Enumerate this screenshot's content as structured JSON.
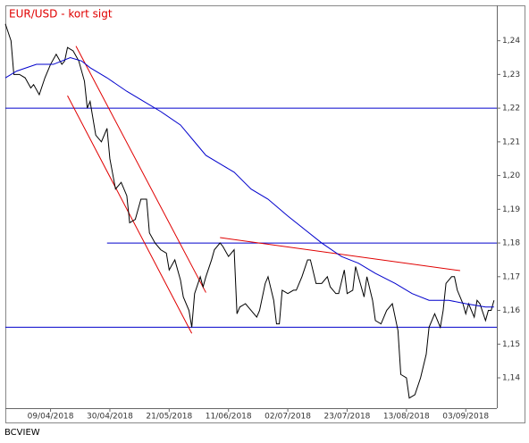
{
  "chart_data": {
    "type": "line",
    "title": "EUR/USD - kort sigt",
    "source": "BCVIEW",
    "xlim": [
      "2018-03-24",
      "2018-09-14"
    ],
    "ylim": [
      1.131,
      1.2505
    ],
    "yticks": [
      {
        "value": 1.14,
        "label": "1,14"
      },
      {
        "value": 1.15,
        "label": "1,15"
      },
      {
        "value": 1.16,
        "label": "1,16"
      },
      {
        "value": 1.17,
        "label": "1,17"
      },
      {
        "value": 1.18,
        "label": "1,18"
      },
      {
        "value": 1.19,
        "label": "1,19"
      },
      {
        "value": 1.2,
        "label": "1,20"
      },
      {
        "value": 1.21,
        "label": "1,21"
      },
      {
        "value": 1.22,
        "label": "1,22"
      },
      {
        "value": 1.23,
        "label": "1,23"
      },
      {
        "value": 1.24,
        "label": "1,24"
      }
    ],
    "xticks": [
      {
        "value": "2018-04-09",
        "label": "09/04/2018"
      },
      {
        "value": "2018-04-30",
        "label": "30/04/2018"
      },
      {
        "value": "2018-05-21",
        "label": "21/05/2018"
      },
      {
        "value": "2018-06-11",
        "label": "11/06/2018"
      },
      {
        "value": "2018-07-02",
        "label": "02/07/2018"
      },
      {
        "value": "2018-07-23",
        "label": "23/07/2018"
      },
      {
        "value": "2018-08-13",
        "label": "13/08/2018"
      },
      {
        "value": "2018-09-03",
        "label": "03/09/2018"
      }
    ],
    "series": [
      {
        "color": "#000000",
        "x": [
          "2018-03-24",
          "2018-03-26",
          "2018-03-27",
          "2018-03-29",
          "2018-03-31",
          "2018-04-02",
          "2018-04-03",
          "2018-04-05",
          "2018-04-07",
          "2018-04-09",
          "2018-04-11",
          "2018-04-13",
          "2018-04-14",
          "2018-04-15",
          "2018-04-17",
          "2018-04-19",
          "2018-04-21",
          "2018-04-22",
          "2018-04-23",
          "2018-04-25",
          "2018-04-27",
          "2018-04-29",
          "2018-04-30",
          "2018-05-02",
          "2018-05-04",
          "2018-05-06",
          "2018-05-07",
          "2018-05-09",
          "2018-05-11",
          "2018-05-13",
          "2018-05-14",
          "2018-05-16",
          "2018-05-18",
          "2018-05-20",
          "2018-05-21",
          "2018-05-23",
          "2018-05-25",
          "2018-05-26",
          "2018-05-28",
          "2018-05-29",
          "2018-05-30",
          "2018-06-01",
          "2018-06-02",
          "2018-06-03",
          "2018-06-05",
          "2018-06-06",
          "2018-06-08",
          "2018-06-09",
          "2018-06-11",
          "2018-06-13",
          "2018-06-14",
          "2018-06-15",
          "2018-06-17",
          "2018-06-19",
          "2018-06-21",
          "2018-06-22",
          "2018-06-24",
          "2018-06-25",
          "2018-06-27",
          "2018-06-28",
          "2018-06-29",
          "2018-06-30",
          "2018-07-02",
          "2018-07-04",
          "2018-07-05",
          "2018-07-07",
          "2018-07-09",
          "2018-07-10",
          "2018-07-12",
          "2018-07-14",
          "2018-07-16",
          "2018-07-17",
          "2018-07-19",
          "2018-07-20",
          "2018-07-22",
          "2018-07-23",
          "2018-07-25",
          "2018-07-26",
          "2018-07-28",
          "2018-07-29",
          "2018-07-30",
          "2018-08-01",
          "2018-08-02",
          "2018-08-04",
          "2018-08-06",
          "2018-08-08",
          "2018-08-10",
          "2018-08-11",
          "2018-08-13",
          "2018-08-14",
          "2018-08-16",
          "2018-08-18",
          "2018-08-20",
          "2018-08-21",
          "2018-08-23",
          "2018-08-25",
          "2018-08-26",
          "2018-08-27",
          "2018-08-29",
          "2018-08-30",
          "2018-08-31",
          "2018-09-02",
          "2018-09-03",
          "2018-09-04",
          "2018-09-06",
          "2018-09-07",
          "2018-09-08",
          "2018-09-10",
          "2018-09-11",
          "2018-09-12",
          "2018-09-13"
        ],
        "values": [
          1.245,
          1.24,
          1.23,
          1.23,
          1.229,
          1.226,
          1.227,
          1.224,
          1.229,
          1.233,
          1.236,
          1.233,
          1.234,
          1.238,
          1.237,
          1.234,
          1.228,
          1.22,
          1.222,
          1.212,
          1.21,
          1.214,
          1.205,
          1.196,
          1.198,
          1.194,
          1.186,
          1.187,
          1.193,
          1.193,
          1.183,
          1.18,
          1.178,
          1.177,
          1.172,
          1.175,
          1.169,
          1.164,
          1.16,
          1.155,
          1.165,
          1.17,
          1.167,
          1.17,
          1.175,
          1.178,
          1.18,
          1.179,
          1.176,
          1.178,
          1.159,
          1.161,
          1.162,
          1.16,
          1.158,
          1.16,
          1.168,
          1.17,
          1.163,
          1.156,
          1.156,
          1.166,
          1.165,
          1.166,
          1.166,
          1.17,
          1.175,
          1.175,
          1.168,
          1.168,
          1.17,
          1.167,
          1.165,
          1.165,
          1.172,
          1.165,
          1.166,
          1.173,
          1.167,
          1.164,
          1.17,
          1.163,
          1.157,
          1.156,
          1.16,
          1.162,
          1.154,
          1.141,
          1.14,
          1.134,
          1.135,
          1.14,
          1.147,
          1.155,
          1.159,
          1.155,
          1.16,
          1.168,
          1.17,
          1.17,
          1.166,
          1.162,
          1.159,
          1.162,
          1.158,
          1.163,
          1.162,
          1.157,
          1.16,
          1.16,
          1.163
        ]
      },
      {
        "color": "#0000cc",
        "x": [
          "2018-03-24",
          "2018-03-28",
          "2018-04-04",
          "2018-04-10",
          "2018-04-16",
          "2018-04-20",
          "2018-04-23",
          "2018-04-29",
          "2018-05-06",
          "2018-05-12",
          "2018-05-18",
          "2018-05-25",
          "2018-05-31",
          "2018-06-03",
          "2018-06-09",
          "2018-06-13",
          "2018-06-19",
          "2018-06-25",
          "2018-07-02",
          "2018-07-08",
          "2018-07-14",
          "2018-07-21",
          "2018-07-27",
          "2018-08-02",
          "2018-08-09",
          "2018-08-15",
          "2018-08-21",
          "2018-08-28",
          "2018-09-03",
          "2018-09-10",
          "2018-09-13"
        ],
        "values": [
          1.229,
          1.231,
          1.233,
          1.233,
          1.235,
          1.234,
          1.232,
          1.229,
          1.225,
          1.222,
          1.219,
          1.215,
          1.209,
          1.206,
          1.203,
          1.201,
          1.196,
          1.193,
          1.188,
          1.184,
          1.18,
          1.176,
          1.174,
          1.171,
          1.168,
          1.165,
          1.163,
          1.163,
          1.162,
          1.161,
          1.161
        ]
      }
    ],
    "hline_color": "#0000cc",
    "hlines": [
      {
        "value": 1.22,
        "x": [
          "2018-03-24",
          "2018-09-14"
        ]
      },
      {
        "value": 1.18,
        "x": [
          "2018-04-29",
          "2018-09-14"
        ]
      },
      {
        "value": 1.155,
        "x": [
          "2018-03-24",
          "2018-09-14"
        ]
      }
    ],
    "trend_color": "#e00000",
    "trendlines": [
      {
        "x": [
          "2018-04-15",
          "2018-05-29"
        ],
        "values": [
          1.2237,
          1.1532
        ]
      },
      {
        "x": [
          "2018-04-18",
          "2018-06-03"
        ],
        "values": [
          1.2384,
          1.1653
        ]
      },
      {
        "x": [
          "2018-06-08",
          "2018-09-01"
        ],
        "values": [
          1.1816,
          1.1718
        ]
      }
    ]
  }
}
